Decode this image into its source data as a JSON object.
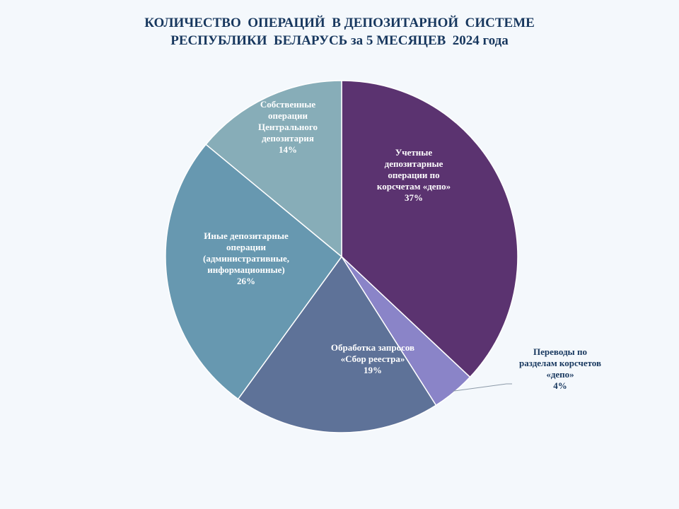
{
  "title_lines": [
    "КОЛИЧЕСТВО  ОПЕРАЦИЙ  В ДЕПОЗИТАРНОЙ  СИСТЕМЕ",
    "РЕСПУБЛИКИ  БЕЛАРУСЬ за 5 МЕСЯЦЕВ  2024 года"
  ],
  "chart_data": {
    "type": "pie",
    "title": "КОЛИЧЕСТВО  ОПЕРАЦИЙ  В ДЕПОЗИТАРНОЙ  СИСТЕМЕ РЕСПУБЛИКИ  БЕЛАРУСЬ за 5 МЕСЯЦЕВ  2024 года",
    "start_angle_deg": 0,
    "direction": "clockwise",
    "slices": [
      {
        "label_lines": [
          "Учетные",
          "депозитарные",
          "операции по",
          "корсчетам «депо»"
        ],
        "value": 37,
        "value_label": "37%",
        "color": "#5b3370",
        "label_position": "inside"
      },
      {
        "label_lines": [
          "Переводы по",
          "разделам корсчетов",
          "«депо»"
        ],
        "value": 4,
        "value_label": "4%",
        "color": "#8a84c8",
        "label_position": "outside"
      },
      {
        "label_lines": [
          "Обработка запросов",
          "«Сбор реестра»"
        ],
        "value": 19,
        "value_label": "19%",
        "color": "#5e7298",
        "label_position": "inside"
      },
      {
        "label_lines": [
          "Иные депозитарные",
          "операции",
          "(административные,",
          "информационные)"
        ],
        "value": 26,
        "value_label": "26%",
        "color": "#6798b0",
        "label_position": "inside"
      },
      {
        "label_lines": [
          "Собственные",
          "операции",
          "Центрального",
          "депозитария"
        ],
        "value": 14,
        "value_label": "14%",
        "color": "#87adb8",
        "label_position": "inside"
      }
    ]
  }
}
